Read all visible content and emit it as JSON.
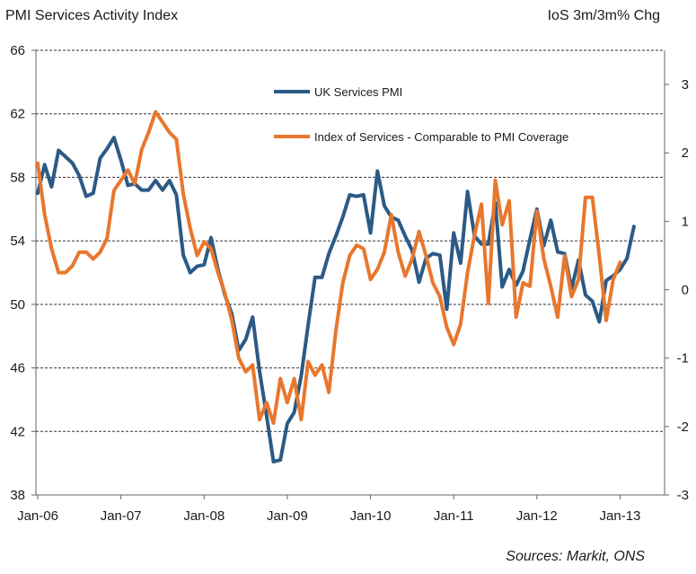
{
  "chart_data": {
    "type": "line",
    "title": "PMI Services Activity Index",
    "right_axis_title": "IoS 3m/3m% Chg",
    "source": "Sources: Markit, ONS",
    "x_ticks": [
      "Jan-06",
      "Jan-07",
      "Jan-08",
      "Jan-09",
      "Jan-10",
      "Jan-11",
      "Jan-12",
      "Jan-13"
    ],
    "x_range": [
      "2006-01",
      "2013-04"
    ],
    "y_left": {
      "lim": [
        38,
        66
      ],
      "ticks": [
        "66",
        "62",
        "58",
        "54",
        "50",
        "46",
        "42",
        "38"
      ]
    },
    "y_right": {
      "lim": [
        -3,
        3.5
      ],
      "ticks": [
        "3",
        "2",
        "1",
        "0",
        "-1",
        "-2",
        "-3"
      ]
    },
    "gridlines": "horizontal-dashed",
    "legend": "top-center",
    "series": [
      {
        "name": "UK Services PMI",
        "axis": "left",
        "color": "#2b5a85",
        "x_start": "2006-01",
        "values": [
          57.0,
          58.8,
          57.4,
          59.7,
          59.3,
          58.9,
          58.1,
          56.8,
          57.0,
          59.2,
          59.8,
          60.5,
          59.1,
          57.5,
          57.6,
          57.2,
          57.2,
          57.8,
          57.2,
          57.8,
          56.9,
          53.1,
          52.0,
          52.4,
          52.5,
          54.2,
          52.2,
          50.6,
          49.4,
          47.1,
          47.8,
          49.2,
          45.8,
          43.0,
          40.1,
          40.2,
          42.5,
          43.2,
          45.5,
          48.7,
          51.7,
          51.7,
          53.2,
          54.3,
          55.5,
          56.9,
          56.8,
          56.9,
          54.5,
          58.4,
          56.2,
          55.5,
          55.3,
          54.3,
          53.4,
          51.4,
          52.9,
          53.2,
          53.1,
          49.7,
          54.5,
          52.6,
          57.1,
          54.3,
          53.8,
          53.8,
          56.4,
          51.1,
          52.2,
          51.2,
          52.1,
          54.1,
          56.0,
          53.7,
          55.3,
          53.3,
          53.2,
          51.0,
          52.8,
          50.6,
          50.2,
          48.9,
          51.5,
          51.8,
          52.2,
          52.9,
          54.9
        ]
      },
      {
        "name": "Index of Services - Comparable to PMI Coverage",
        "axis": "right",
        "color": "#e8772e",
        "x_start": "2006-01",
        "values": [
          1.85,
          1.1,
          0.6,
          0.25,
          0.25,
          0.35,
          0.55,
          0.55,
          0.45,
          0.55,
          0.75,
          1.45,
          1.6,
          1.75,
          1.55,
          2.05,
          2.3,
          2.6,
          2.45,
          2.3,
          2.2,
          1.4,
          0.9,
          0.5,
          0.7,
          0.6,
          0.25,
          -0.05,
          -0.45,
          -1.0,
          -1.2,
          -1.1,
          -1.9,
          -1.65,
          -1.95,
          -1.3,
          -1.65,
          -1.3,
          -1.9,
          -1.05,
          -1.25,
          -1.1,
          -1.5,
          -0.6,
          0.1,
          0.5,
          0.65,
          0.6,
          0.15,
          0.3,
          0.55,
          1.1,
          0.55,
          0.2,
          0.45,
          0.85,
          0.5,
          0.1,
          -0.1,
          -0.55,
          -0.8,
          -0.5,
          0.25,
          0.8,
          1.25,
          -0.2,
          1.6,
          0.95,
          1.3,
          -0.4,
          0.1,
          0.05,
          1.15,
          0.45,
          0.05,
          -0.4,
          0.5,
          -0.1,
          0.15,
          1.35,
          1.35,
          0.5,
          -0.45,
          0.15,
          0.4
        ]
      }
    ]
  }
}
